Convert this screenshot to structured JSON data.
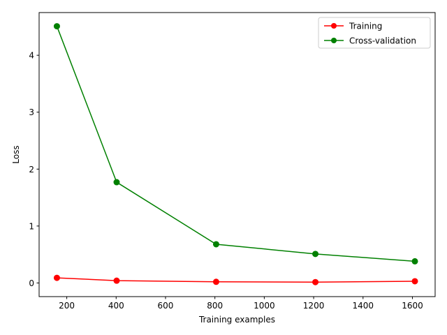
{
  "chart_data": {
    "type": "line",
    "title": "",
    "xlabel": "Training examples",
    "ylabel": "Loss",
    "xlim": [
      88,
      1692
    ],
    "ylim": [
      -0.24,
      4.75
    ],
    "x_ticks": [
      200,
      400,
      600,
      800,
      1000,
      1200,
      1400,
      1600
    ],
    "y_ticks": [
      0,
      1,
      2,
      3,
      4
    ],
    "grid": false,
    "legend_position": "top-right",
    "x": [
      160,
      402,
      805,
      1207,
      1610
    ],
    "series": [
      {
        "name": "Training",
        "color": "#ff0000",
        "marker": "circle",
        "values": [
          0.09,
          0.04,
          0.02,
          0.015,
          0.03
        ]
      },
      {
        "name": "Cross-validation",
        "color": "#008000",
        "marker": "circle",
        "values": [
          4.51,
          1.77,
          0.68,
          0.51,
          0.38
        ]
      }
    ]
  }
}
